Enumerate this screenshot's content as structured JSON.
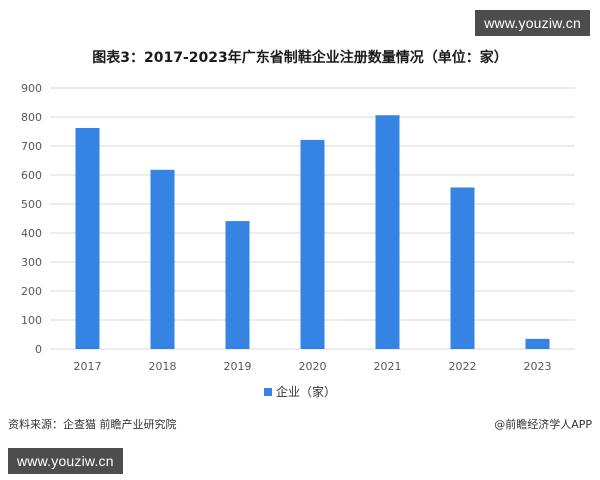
{
  "watermark_top": "www.youziw.cn",
  "watermark_bottom": "www.youziw.cn",
  "source_text": "资料来源：企查猫 前瞻产业研究院",
  "credit_text": "@前瞻经济学人APP",
  "colors": {
    "bar": "#3584e4",
    "grid": "#d9d9d9",
    "axis_text": "#595959"
  },
  "chart_data": {
    "type": "bar",
    "title": "图表3：2017-2023年广东省制鞋企业注册数量情况（单位：家）",
    "categories": [
      "2017",
      "2018",
      "2019",
      "2020",
      "2021",
      "2022",
      "2023"
    ],
    "series": [
      {
        "name": "企业（家）",
        "values": [
          762,
          618,
          441,
          721,
          806,
          557,
          35
        ]
      }
    ],
    "yticks": [
      "0",
      "100",
      "200",
      "300",
      "400",
      "500",
      "600",
      "700",
      "800",
      "900"
    ],
    "ylim": [
      0,
      900
    ],
    "grid": true,
    "legend": "bottom"
  }
}
